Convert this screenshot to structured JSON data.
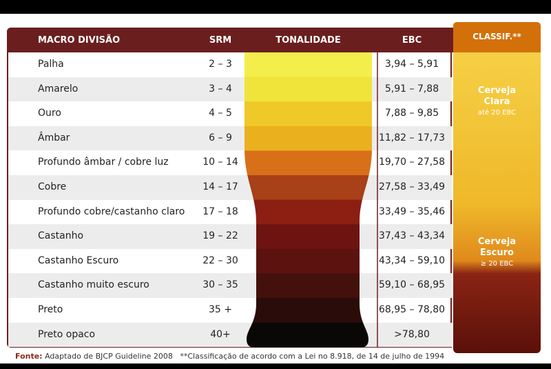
{
  "header": {
    "columns": [
      "MACRO DIVISÃO",
      "SRM",
      "TONALIDADE",
      "EBC"
    ],
    "classif": "CLASSIF.**"
  },
  "rows": [
    [
      "Palha",
      "2 – 3",
      "3,94 – 5,91"
    ],
    [
      "Amarelo",
      "3 – 4",
      "5,91 – 7,88"
    ],
    [
      "Ouro",
      "4 – 5",
      "7,88 – 9,85"
    ],
    [
      "Âmbar",
      "6 – 9",
      "11,82 – 17,73"
    ],
    [
      "Profundo âmbar / cobre luz",
      "10 – 14",
      "19,70 – 27,58"
    ],
    [
      "Cobre",
      "14 – 17",
      "27,58 – 33,49"
    ],
    [
      "Profundo cobre/castanho claro",
      "17 – 18",
      "33,49 – 35,46"
    ],
    [
      "Castanho",
      "19 – 22",
      "37,43 – 43,34"
    ],
    [
      "Castanho Escuro",
      "22 – 30",
      "43,34 – 59,10"
    ],
    [
      "Castanho muito escuro",
      "30 – 35",
      "59,10 – 68,95"
    ],
    [
      "Preto",
      "35 +",
      "68,95 – 78,80"
    ],
    [
      "Preto opaco",
      "40+",
      ">78,80"
    ]
  ],
  "groups": [
    {
      "title": "Cerveja Clara",
      "note": "até 20 EBC"
    },
    {
      "title": "Cerveja Escuro",
      "note": "≥ 20 EBC"
    }
  ],
  "footer": {
    "source_label": "Fonte:",
    "source": "Adaptado de BJCP Guideline 2008",
    "note": "**Classificação de acordo com a Lei no 8.918, de 14 de julho de 1994"
  }
}
